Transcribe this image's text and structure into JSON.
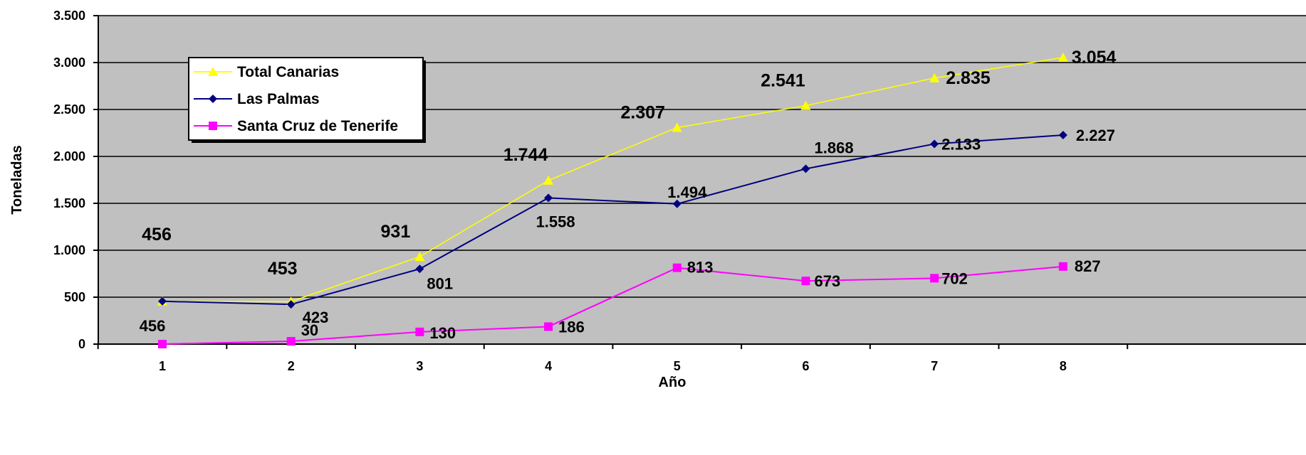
{
  "chart_data": {
    "type": "line",
    "title": "",
    "xlabel": "Año",
    "ylabel": "Toneladas",
    "x": [
      1,
      2,
      3,
      4,
      5,
      6,
      7,
      8
    ],
    "ylim": [
      0,
      3500
    ],
    "yticks": [
      0,
      500,
      1000,
      1500,
      2000,
      2500,
      3000,
      3500
    ],
    "ytick_labels": [
      "0",
      "500",
      "1.000",
      "1.500",
      "2.000",
      "2.500",
      "3.000",
      "3.500"
    ],
    "grid": true,
    "legend_position": "top-left",
    "colors": {
      "plot_background": "#c0c0c0",
      "gridline": "#000000"
    },
    "series": [
      {
        "name": "Total Canarias",
        "color": "#ffff00",
        "marker": "triangle",
        "values": [
          456,
          453,
          931,
          1744,
          2307,
          2541,
          2835,
          3054
        ],
        "labels": [
          "456",
          "453",
          "931",
          "1.744",
          "2.307",
          "2.541",
          "2.835",
          "3.054"
        ]
      },
      {
        "name": "Las Palmas",
        "color": "#000080",
        "marker": "diamond",
        "values": [
          456,
          423,
          801,
          1558,
          1494,
          1868,
          2133,
          2227
        ],
        "labels": [
          "456",
          "423",
          "801",
          "1.558",
          "1.494",
          "1.868",
          "2.133",
          "2.227"
        ]
      },
      {
        "name": "Santa Cruz de Tenerife",
        "color": "#ff00ff",
        "marker": "square",
        "values": [
          0,
          30,
          130,
          186,
          813,
          673,
          702,
          827
        ],
        "labels": [
          "",
          "30",
          "130",
          "186",
          "813",
          "673",
          "702",
          "827"
        ]
      }
    ]
  }
}
